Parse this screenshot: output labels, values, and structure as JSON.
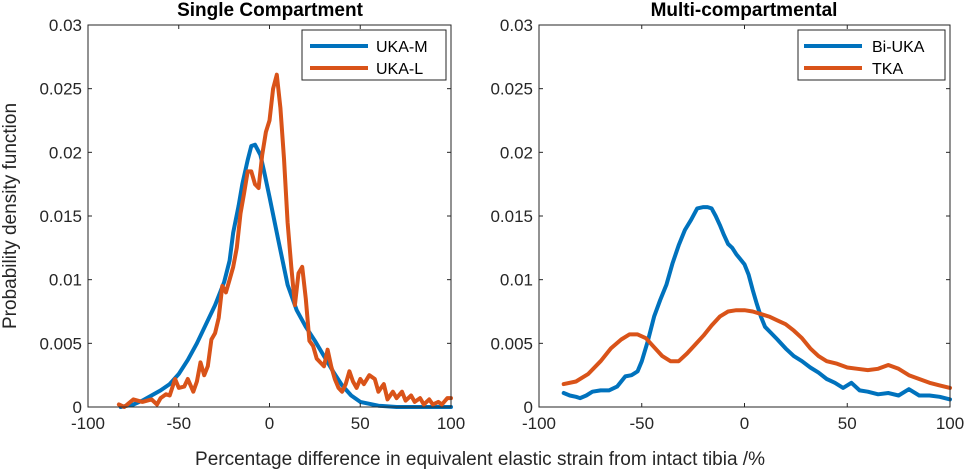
{
  "figure": {
    "xlabel": "Percentage difference in equivalent elastic strain from intact tibia /%",
    "ylabel": "Probability density function"
  },
  "chart_data": [
    {
      "type": "line",
      "title": "Single Compartment",
      "xlabel": "Percentage difference in equivalent elastic strain from intact tibia /%",
      "ylabel": "Probability density function",
      "xlim": [
        -100,
        100
      ],
      "ylim": [
        0,
        0.03
      ],
      "xticks": [
        "-100",
        "-50",
        "0",
        "50",
        "100"
      ],
      "yticks": [
        "0",
        "0.005",
        "0.01",
        "0.015",
        "0.02",
        "0.025",
        "0.03"
      ],
      "legend_position": "top-right",
      "series": [
        {
          "name": "UKA-M",
          "color": "#0072BD",
          "x": [
            -82,
            -75,
            -70,
            -65,
            -60,
            -55,
            -50,
            -45,
            -40,
            -35,
            -30,
            -25,
            -22,
            -20,
            -17,
            -15,
            -12,
            -10,
            -8,
            -5,
            -3,
            0,
            5,
            10,
            15,
            20,
            25,
            30,
            35,
            40,
            45,
            50,
            60,
            70,
            80,
            90,
            100
          ],
          "y": [
            0.0,
            0.0002,
            0.0005,
            0.0009,
            0.0013,
            0.0018,
            0.0026,
            0.0037,
            0.005,
            0.0065,
            0.008,
            0.0098,
            0.0115,
            0.0137,
            0.0158,
            0.0175,
            0.0194,
            0.0205,
            0.0206,
            0.0198,
            0.0185,
            0.0165,
            0.013,
            0.0096,
            0.0076,
            0.0063,
            0.0052,
            0.004,
            0.0028,
            0.0017,
            0.0009,
            0.0004,
            0.0001,
            0.0,
            0.0,
            0.0,
            0.0
          ]
        },
        {
          "name": "UKA-L",
          "color": "#D95319",
          "x": [
            -83,
            -80,
            -75,
            -70,
            -65,
            -62,
            -60,
            -57,
            -55,
            -52,
            -50,
            -47,
            -45,
            -42,
            -40,
            -38,
            -36,
            -34,
            -32,
            -30,
            -28,
            -26,
            -24,
            -22,
            -20,
            -18,
            -16,
            -14,
            -12,
            -10,
            -8,
            -6,
            -4,
            -2,
            0,
            2,
            4,
            6,
            8,
            10,
            12,
            14,
            16,
            18,
            20,
            22,
            24,
            26,
            28,
            30,
            32,
            34,
            36,
            38,
            40,
            42,
            44,
            46,
            48,
            50,
            52,
            55,
            58,
            60,
            63,
            65,
            68,
            70,
            73,
            75,
            78,
            80,
            83,
            85,
            88,
            90,
            93,
            95,
            98,
            100
          ],
          "y": [
            0.0002,
            0.0,
            0.0006,
            0.0004,
            0.0006,
            0.0002,
            0.0007,
            0.001,
            0.0009,
            0.0022,
            0.0015,
            0.0016,
            0.0022,
            0.0012,
            0.002,
            0.0035,
            0.0025,
            0.0032,
            0.0053,
            0.0058,
            0.007,
            0.0095,
            0.009,
            0.01,
            0.011,
            0.0125,
            0.0152,
            0.0168,
            0.0185,
            0.0185,
            0.0175,
            0.0172,
            0.0198,
            0.0216,
            0.0225,
            0.025,
            0.0261,
            0.0235,
            0.0195,
            0.0145,
            0.011,
            0.008,
            0.0105,
            0.011,
            0.0085,
            0.0052,
            0.0048,
            0.0038,
            0.0035,
            0.0032,
            0.0045,
            0.0032,
            0.0022,
            0.0015,
            0.0012,
            0.0018,
            0.0028,
            0.002,
            0.0015,
            0.0022,
            0.0018,
            0.0025,
            0.0022,
            0.0012,
            0.0018,
            0.0006,
            0.0012,
            0.0007,
            0.0012,
            0.0005,
            0.0009,
            0.0004,
            0.0007,
            0.0002,
            0.0006,
            0.0002,
            0.0004,
            0.0002,
            0.0007,
            0.0007
          ]
        }
      ]
    },
    {
      "type": "line",
      "title": "Multi-compartmental",
      "xlabel": "Percentage difference in equivalent elastic strain from intact tibia /%",
      "ylabel": "Probability density function",
      "xlim": [
        -100,
        100
      ],
      "ylim": [
        0,
        0.03
      ],
      "xticks": [
        "-100",
        "-50",
        "0",
        "50",
        "100"
      ],
      "yticks": [
        "0",
        "0.005",
        "0.01",
        "0.015",
        "0.02",
        "0.025",
        "0.03"
      ],
      "legend_position": "top-right",
      "series": [
        {
          "name": "Bi-UKA",
          "color": "#0072BD",
          "x": [
            -88,
            -85,
            -82,
            -80,
            -77,
            -74,
            -70,
            -66,
            -62,
            -58,
            -55,
            -52,
            -50,
            -47,
            -44,
            -41,
            -38,
            -35,
            -32,
            -29,
            -26,
            -23,
            -20,
            -18,
            -16,
            -14,
            -12,
            -10,
            -8,
            -6,
            -4,
            -2,
            0,
            2,
            4,
            6,
            8,
            10,
            13,
            16,
            20,
            24,
            28,
            32,
            36,
            40,
            44,
            48,
            52,
            56,
            60,
            65,
            70,
            75,
            80,
            85,
            90,
            95,
            100
          ],
          "y": [
            0.0011,
            0.0009,
            0.0008,
            0.0007,
            0.0009,
            0.0012,
            0.0013,
            0.0013,
            0.0016,
            0.0024,
            0.0025,
            0.0028,
            0.0036,
            0.0052,
            0.0071,
            0.0084,
            0.0096,
            0.0113,
            0.0127,
            0.0139,
            0.0147,
            0.0156,
            0.0157,
            0.0157,
            0.0156,
            0.015,
            0.0143,
            0.0135,
            0.0128,
            0.0125,
            0.012,
            0.0116,
            0.0112,
            0.0104,
            0.0092,
            0.0081,
            0.0071,
            0.0063,
            0.0058,
            0.0053,
            0.0046,
            0.004,
            0.0036,
            0.0031,
            0.0027,
            0.0022,
            0.0019,
            0.0015,
            0.0019,
            0.0013,
            0.0012,
            0.001,
            0.0011,
            0.0009,
            0.0014,
            0.0009,
            0.0009,
            0.0008,
            0.0006
          ]
        },
        {
          "name": "TKA",
          "color": "#D95319",
          "x": [
            -88,
            -82,
            -76,
            -70,
            -65,
            -60,
            -56,
            -52,
            -48,
            -44,
            -40,
            -36,
            -32,
            -28,
            -24,
            -20,
            -16,
            -12,
            -8,
            -4,
            0,
            4,
            8,
            12,
            16,
            20,
            24,
            28,
            32,
            36,
            40,
            45,
            50,
            55,
            60,
            65,
            70,
            75,
            80,
            85,
            90,
            95,
            100
          ],
          "y": [
            0.0018,
            0.002,
            0.0026,
            0.0036,
            0.0046,
            0.0053,
            0.0057,
            0.0057,
            0.0054,
            0.0047,
            0.004,
            0.0036,
            0.0036,
            0.0042,
            0.0049,
            0.0056,
            0.0064,
            0.0071,
            0.0075,
            0.0076,
            0.0076,
            0.0075,
            0.0073,
            0.0071,
            0.0068,
            0.0065,
            0.006,
            0.0054,
            0.0046,
            0.004,
            0.0036,
            0.0034,
            0.0031,
            0.003,
            0.0029,
            0.003,
            0.0033,
            0.003,
            0.0025,
            0.0022,
            0.0019,
            0.0017,
            0.0015
          ]
        }
      ]
    }
  ]
}
